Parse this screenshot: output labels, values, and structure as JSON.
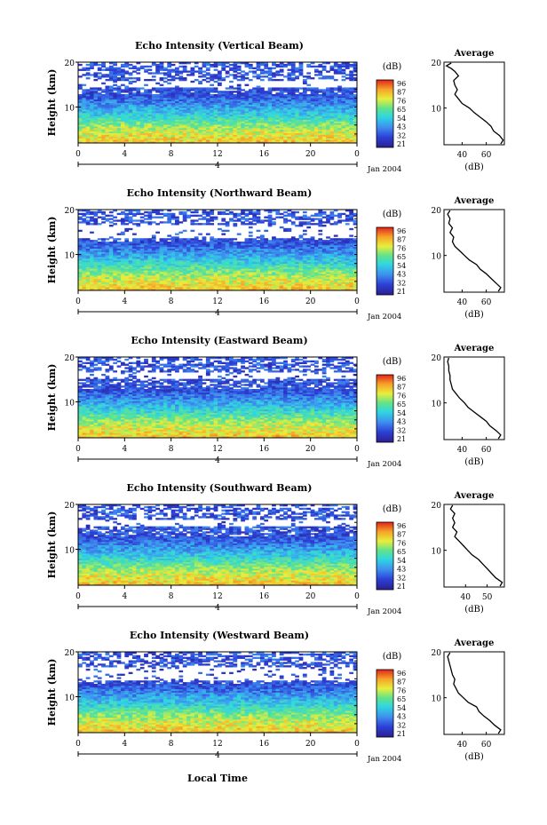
{
  "figure": {
    "date_label": "Jan 2004",
    "xlabel": "Local Time",
    "colorbar_unit": "(dB)",
    "colorbar_ticks": [
      "96",
      "87",
      "76",
      "65",
      "54",
      "43",
      "32",
      "21"
    ],
    "average_title": "Average",
    "average_xlabel": "(dB)"
  },
  "chart_data": [
    {
      "type": "heatmap",
      "title": "Echo Intensity (Vertical Beam)",
      "ylabel": "Height (km)",
      "x_ticks": [
        "0",
        "4",
        "8",
        "12",
        "16",
        "20",
        "0"
      ],
      "xlim": [
        0,
        24
      ],
      "day_label": "4",
      "ylim": [
        2,
        20
      ],
      "y_ticks": [
        "20",
        "10"
      ],
      "z_range": [
        21,
        96
      ],
      "noise_gap_km": [
        14.3,
        16.0
      ],
      "average": {
        "title": "Average",
        "xlabel": "(dB)",
        "x_ticks": [
          "40",
          "60"
        ],
        "xlim": [
          25,
          75
        ],
        "profile": [
          [
            72,
            2.2
          ],
          [
            74,
            3
          ],
          [
            71,
            4
          ],
          [
            66,
            5
          ],
          [
            64,
            6
          ],
          [
            60,
            7
          ],
          [
            55,
            8
          ],
          [
            50,
            9
          ],
          [
            46,
            10
          ],
          [
            40,
            11
          ],
          [
            37,
            12
          ],
          [
            34,
            13
          ],
          [
            36,
            14
          ],
          [
            34,
            15
          ],
          [
            33,
            16
          ],
          [
            37,
            17
          ],
          [
            34,
            18
          ],
          [
            31,
            18.6
          ],
          [
            27,
            19.2
          ],
          [
            31,
            19.8
          ]
        ]
      }
    },
    {
      "type": "heatmap",
      "title": "Echo Intensity (Northward Beam)",
      "ylabel": "Height (km)",
      "x_ticks": [
        "0",
        "4",
        "8",
        "12",
        "16",
        "20",
        "0"
      ],
      "xlim": [
        0,
        24
      ],
      "day_label": "4",
      "ylim": [
        2,
        20
      ],
      "y_ticks": [
        "20",
        "10"
      ],
      "z_range": [
        21,
        96
      ],
      "noise_gap_km": [
        13.5,
        16.5
      ],
      "average": {
        "title": "Average",
        "xlabel": "(dB)",
        "x_ticks": [
          "40",
          "60"
        ],
        "xlim": [
          25,
          75
        ],
        "profile": [
          [
            70,
            2.2
          ],
          [
            72,
            3
          ],
          [
            68,
            4
          ],
          [
            64,
            5
          ],
          [
            60,
            6
          ],
          [
            55,
            7
          ],
          [
            52,
            8
          ],
          [
            46,
            9
          ],
          [
            42,
            10
          ],
          [
            38,
            11
          ],
          [
            34,
            12
          ],
          [
            32,
            13
          ],
          [
            33,
            14
          ],
          [
            30,
            15
          ],
          [
            32,
            16
          ],
          [
            29,
            17
          ],
          [
            30,
            18
          ],
          [
            28,
            19
          ],
          [
            30,
            19.8
          ]
        ]
      }
    },
    {
      "type": "heatmap",
      "title": "Echo Intensity (Eastward Beam)",
      "ylabel": "Height (km)",
      "x_ticks": [
        "0",
        "4",
        "8",
        "12",
        "16",
        "20",
        "0"
      ],
      "xlim": [
        0,
        24
      ],
      "day_label": "4",
      "ylim": [
        2,
        20
      ],
      "y_ticks": [
        "20",
        "10"
      ],
      "z_range": [
        21,
        96
      ],
      "noise_gap_km": [
        15.0,
        16.5
      ],
      "average": {
        "title": "Average",
        "xlabel": "(dB)",
        "x_ticks": [
          "40",
          "60"
        ],
        "xlim": [
          25,
          75
        ],
        "profile": [
          [
            70,
            2.2
          ],
          [
            72,
            3
          ],
          [
            68,
            4
          ],
          [
            63,
            5
          ],
          [
            60,
            6
          ],
          [
            55,
            7
          ],
          [
            50,
            8
          ],
          [
            45,
            9
          ],
          [
            42,
            10
          ],
          [
            38,
            11
          ],
          [
            35,
            12
          ],
          [
            32,
            13
          ],
          [
            31,
            14
          ],
          [
            30,
            15
          ],
          [
            30,
            16
          ],
          [
            29,
            17
          ],
          [
            29,
            18
          ],
          [
            28,
            19
          ],
          [
            29,
            19.8
          ]
        ]
      }
    },
    {
      "type": "heatmap",
      "title": "Echo Intensity (Southward Beam)",
      "ylabel": "Height (km)",
      "x_ticks": [
        "0",
        "4",
        "8",
        "12",
        "16",
        "20",
        "0"
      ],
      "xlim": [
        0,
        24
      ],
      "day_label": "4",
      "ylim": [
        2,
        20
      ],
      "y_ticks": [
        "20",
        "10"
      ],
      "z_range": [
        21,
        96
      ],
      "noise_gap_km": [
        15.0,
        16.5
      ],
      "average": {
        "title": "Average",
        "xlabel": "(dB)",
        "x_ticks": [
          "40",
          "50"
        ],
        "xlim": [
          30,
          58
        ],
        "profile": [
          [
            56,
            2.2
          ],
          [
            57,
            3
          ],
          [
            54,
            4
          ],
          [
            52,
            5
          ],
          [
            50,
            6
          ],
          [
            48,
            7
          ],
          [
            46,
            8
          ],
          [
            43,
            9
          ],
          [
            41,
            10
          ],
          [
            39,
            11
          ],
          [
            37,
            12
          ],
          [
            35,
            13
          ],
          [
            36,
            14
          ],
          [
            34,
            15
          ],
          [
            35,
            16
          ],
          [
            34,
            17
          ],
          [
            35,
            18
          ],
          [
            33,
            19
          ],
          [
            34,
            19.8
          ]
        ]
      }
    },
    {
      "type": "heatmap",
      "title": "Echo Intensity (Westward Beam)",
      "ylabel": "Height (km)",
      "x_ticks": [
        "0",
        "4",
        "8",
        "12",
        "16",
        "20",
        "0"
      ],
      "xlim": [
        0,
        24
      ],
      "day_label": "4",
      "ylim": [
        2,
        20
      ],
      "y_ticks": [
        "20",
        "10"
      ],
      "z_range": [
        21,
        96
      ],
      "noise_gap_km": [
        13.5,
        16.5
      ],
      "average": {
        "title": "Average",
        "xlabel": "(dB)",
        "x_ticks": [
          "40",
          "60"
        ],
        "xlim": [
          25,
          75
        ],
        "profile": [
          [
            70,
            2.2
          ],
          [
            72,
            3
          ],
          [
            67,
            4
          ],
          [
            63,
            5
          ],
          [
            58,
            6
          ],
          [
            54,
            7
          ],
          [
            52,
            8
          ],
          [
            45,
            9
          ],
          [
            41,
            10
          ],
          [
            37,
            11
          ],
          [
            35,
            12
          ],
          [
            33,
            13
          ],
          [
            34,
            14
          ],
          [
            32,
            15
          ],
          [
            31,
            16
          ],
          [
            30,
            17
          ],
          [
            29,
            18
          ],
          [
            28,
            19
          ],
          [
            30,
            19.8
          ]
        ]
      }
    }
  ]
}
